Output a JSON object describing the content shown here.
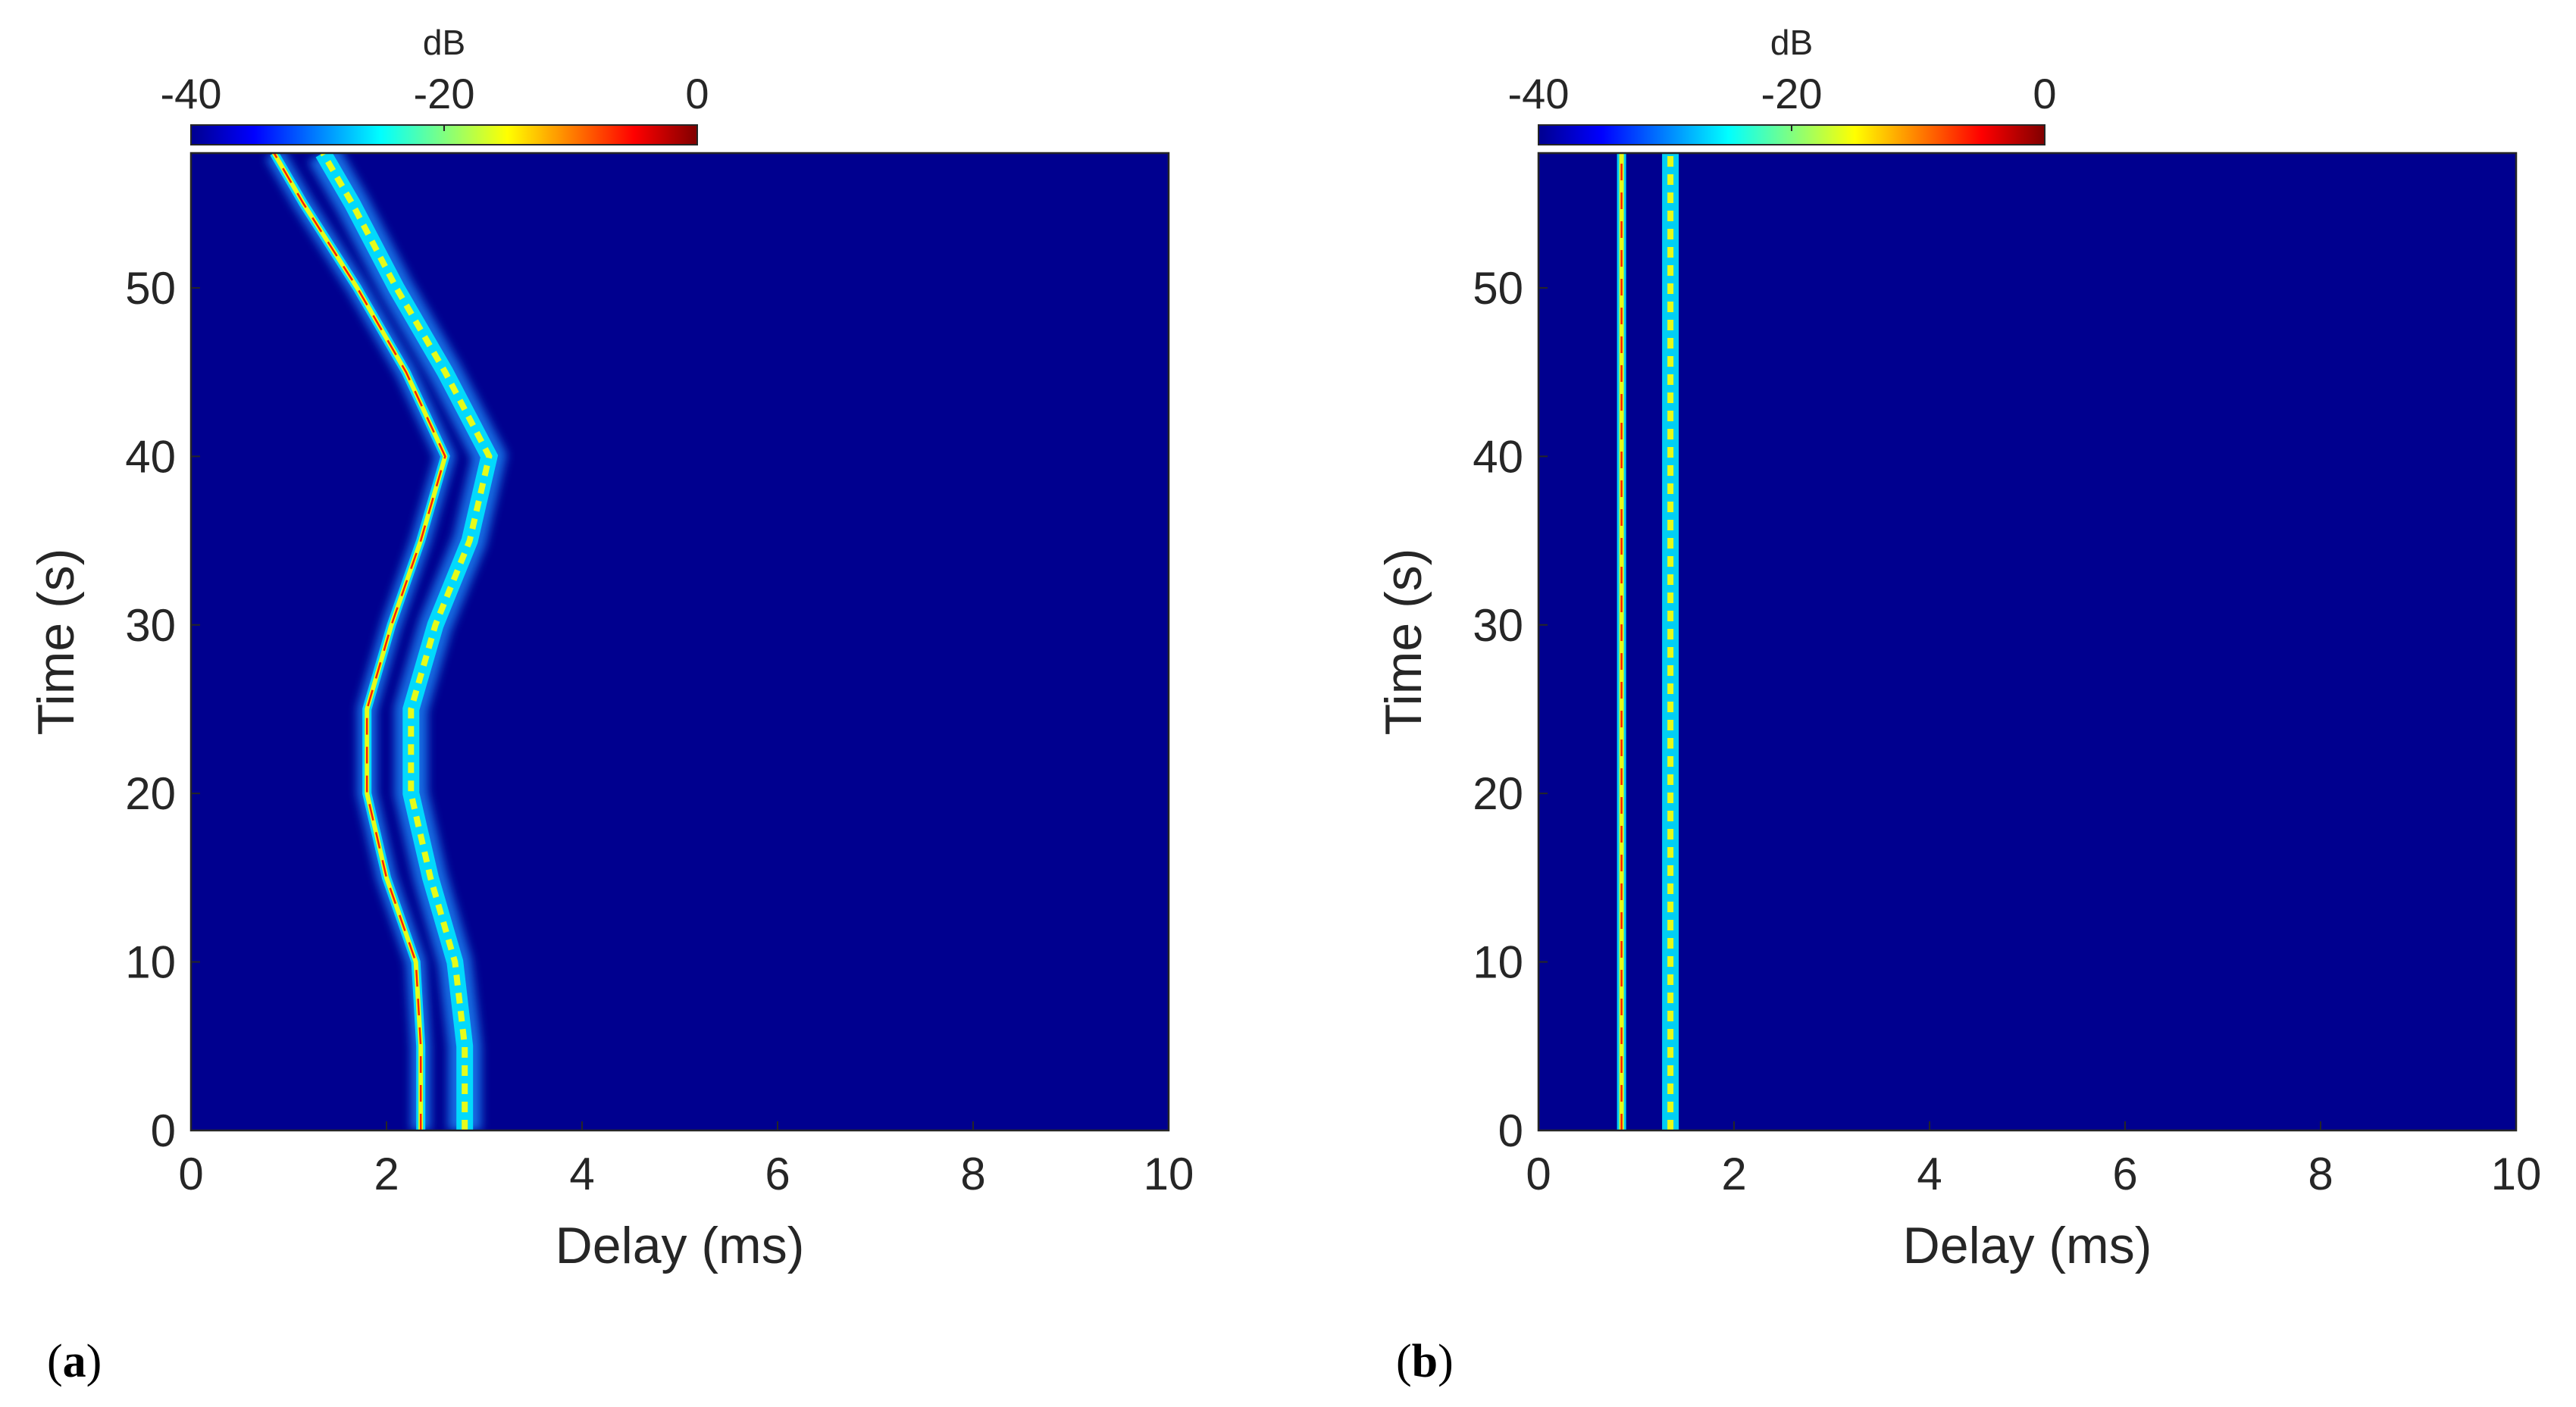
{
  "colors": {
    "background": "#00008F",
    "trace_low": "#1E90FF",
    "trace_mid": "#00E5FF",
    "trace_high": "#FFFF00",
    "trace_peak": "#FF2000",
    "colormap": [
      "#00008F",
      "#0000FF",
      "#0080FF",
      "#00FFFF",
      "#80FF80",
      "#FFFF00",
      "#FF8000",
      "#FF0000",
      "#800000"
    ]
  },
  "chart_data": [
    {
      "type": "heatmap",
      "panel_label_open": "(",
      "panel_label": "a",
      "panel_label_close": ")",
      "xlabel": "Delay (ms)",
      "ylabel": "Time (s)",
      "xlim": [
        0,
        10
      ],
      "ylim": [
        0,
        58
      ],
      "xticks": [
        "0",
        "2",
        "4",
        "6",
        "8",
        "10"
      ],
      "yticks": [
        "0",
        "10",
        "20",
        "30",
        "40",
        "50"
      ],
      "colorbar": {
        "unit": "dB",
        "range": [
          -40,
          0
        ],
        "ticks": [
          "-40",
          "-20",
          "0"
        ],
        "colormap": "jet"
      },
      "paths": [
        {
          "name": "",
          "intensity": "high",
          "points": [
            [
              2.35,
              0
            ],
            [
              2.35,
              5
            ],
            [
              2.3,
              10
            ],
            [
              2.0,
              15
            ],
            [
              1.8,
              20
            ],
            [
              1.8,
              25
            ],
            [
              2.05,
              30
            ],
            [
              2.35,
              35
            ],
            [
              2.6,
              40
            ],
            [
              2.2,
              45
            ],
            [
              1.7,
              50
            ],
            [
              1.15,
              55
            ],
            [
              0.85,
              58
            ]
          ]
        },
        {
          "name": "",
          "intensity": "medium",
          "points": [
            [
              2.8,
              0
            ],
            [
              2.8,
              5
            ],
            [
              2.7,
              10
            ],
            [
              2.45,
              15
            ],
            [
              2.25,
              20
            ],
            [
              2.25,
              25
            ],
            [
              2.5,
              30
            ],
            [
              2.85,
              35
            ],
            [
              3.05,
              40
            ],
            [
              2.6,
              45
            ],
            [
              2.1,
              50
            ],
            [
              1.65,
              55
            ],
            [
              1.35,
              58
            ]
          ]
        }
      ]
    },
    {
      "type": "heatmap",
      "panel_label_open": "(",
      "panel_label": "b",
      "panel_label_close": ")",
      "xlabel": "Delay (ms)",
      "ylabel": "Time (s)",
      "xlim": [
        0,
        10
      ],
      "ylim": [
        0,
        58
      ],
      "xticks": [
        "0",
        "2",
        "4",
        "6",
        "8",
        "10"
      ],
      "yticks": [
        "0",
        "10",
        "20",
        "30",
        "40",
        "50"
      ],
      "colorbar": {
        "unit": "dB",
        "range": [
          -40,
          0
        ],
        "ticks": [
          "-40",
          "-20",
          "0"
        ],
        "colormap": "jet"
      },
      "paths": [
        {
          "name": "",
          "intensity": "high",
          "points": [
            [
              0.85,
              0
            ],
            [
              0.85,
              58
            ]
          ]
        },
        {
          "name": "",
          "intensity": "medium",
          "points": [
            [
              1.35,
              0
            ],
            [
              1.35,
              58
            ]
          ]
        }
      ]
    }
  ]
}
